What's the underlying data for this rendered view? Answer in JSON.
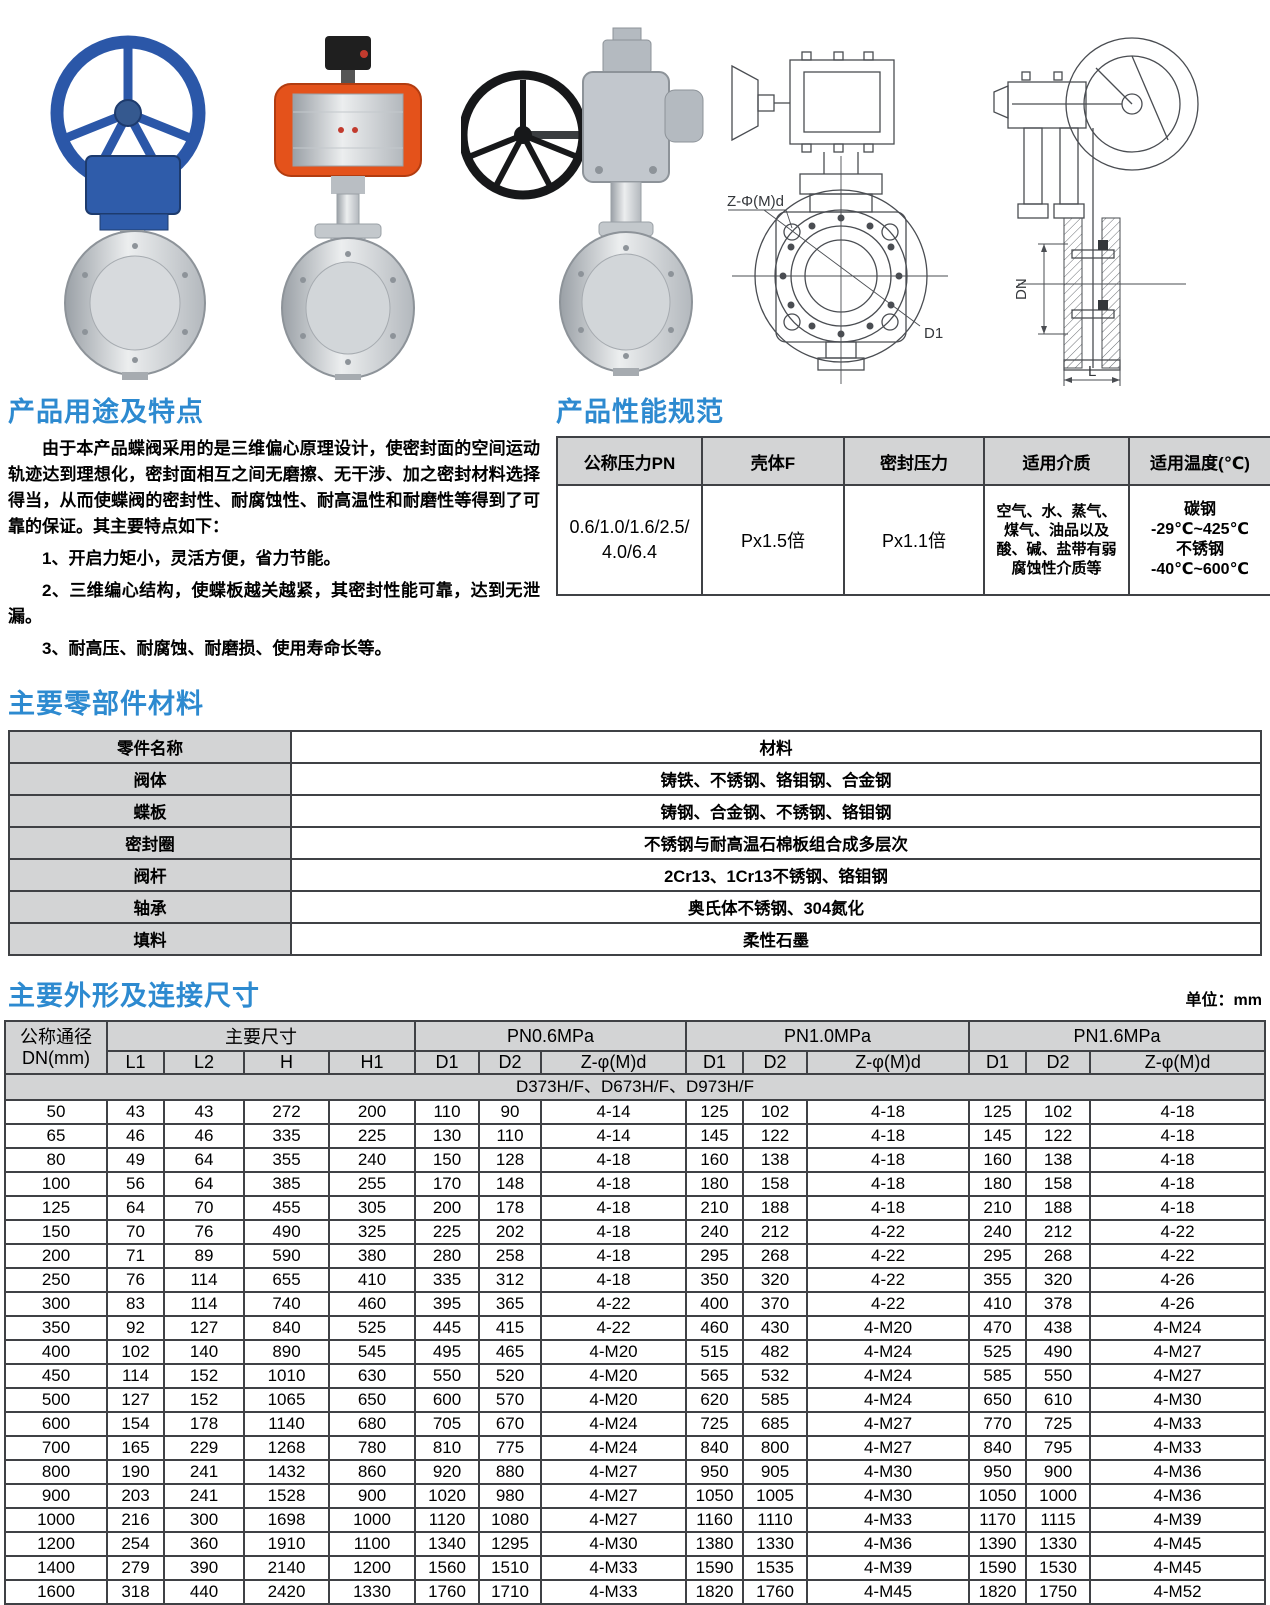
{
  "colors": {
    "heading_blue": "#2d8ad0",
    "table_header_gray": "#d3d4d5",
    "handwheel_blue": "#2b57a8",
    "actuator_orange": "#e4521b"
  },
  "gallery": {
    "drawing_front": {
      "label_bolt": "Z-Φ(M)d",
      "label_d1": "D1"
    },
    "drawing_side": {
      "label_dn": "DN",
      "label_l": "L"
    }
  },
  "features": {
    "title": "产品用途及特点",
    "intro": "由于本产品蝶阀采用的是三维偏心原理设计，使密封面的空间运动轨迹达到理想化，密封面相互之间无磨擦、无干涉、加之密封材料选择得当，从而使蝶阀的密封性、耐腐蚀性、耐高温性和耐磨性等得到了可靠的保证。其主要特点如下：",
    "items": [
      "1、开启力矩小，灵活方便，省力节能。",
      "2、三维编心结构，使蝶板越关越紧，其密封性能可靠，达到无泄漏。",
      "3、耐高压、耐腐蚀、耐磨损、使用寿命长等。"
    ]
  },
  "specs": {
    "title": "产品性能规范",
    "headers": [
      "公称压力PN",
      "壳体F",
      "密封压力",
      "适用介质",
      "适用温度(℃)"
    ],
    "row": {
      "pn": "0.6/1.0/1.6/2.5/4.0/6.4",
      "shell": "Px1.5倍",
      "seal": "Px1.1倍",
      "medium": "空气、水、蒸气、煤气、油品以及酸、碱、盐带有弱腐蚀性介质等",
      "temp_lines": [
        "碳钢",
        "-29℃~425℃",
        "不锈钢",
        "-40℃~600℃"
      ]
    }
  },
  "materials": {
    "title": "主要零部件材料",
    "headers": [
      "零件名称",
      "材料"
    ],
    "rows": [
      [
        "阀体",
        "铸铁、不锈钢、铬钼钢、合金钢"
      ],
      [
        "蝶板",
        "铸钢、合金钢、不锈钢、铬钼钢"
      ],
      [
        "密封圈",
        "不锈钢与耐高温石棉板组合成多层次"
      ],
      [
        "阀杆",
        "2Cr13、1Cr13不锈钢、铬钼钢"
      ],
      [
        "轴承",
        "奥氏体不锈钢、304氮化"
      ],
      [
        "填料",
        "柔性石墨"
      ]
    ]
  },
  "dimensions": {
    "title": "主要外形及连接尺寸",
    "unit_note": "单位：mm",
    "dn_header": "公称通径\nDN(mm)",
    "groups": [
      "主要尺寸",
      "PN0.6MPa",
      "PN1.0MPa",
      "PN1.6MPa"
    ],
    "sub_headers": [
      "L1",
      "L2",
      "H",
      "H1",
      "D1",
      "D2",
      "Z-φ(M)d",
      "D1",
      "D2",
      "Z-φ(M)d",
      "D1",
      "D2",
      "Z-φ(M)d"
    ],
    "models": "D373H/F、D673H/F、D973H/F",
    "rows": [
      [
        "50",
        "43",
        "43",
        "272",
        "200",
        "110",
        "90",
        "4-14",
        "125",
        "102",
        "4-18",
        "125",
        "102",
        "4-18"
      ],
      [
        "65",
        "46",
        "46",
        "335",
        "225",
        "130",
        "110",
        "4-14",
        "145",
        "122",
        "4-18",
        "145",
        "122",
        "4-18"
      ],
      [
        "80",
        "49",
        "64",
        "355",
        "240",
        "150",
        "128",
        "4-18",
        "160",
        "138",
        "4-18",
        "160",
        "138",
        "4-18"
      ],
      [
        "100",
        "56",
        "64",
        "385",
        "255",
        "170",
        "148",
        "4-18",
        "180",
        "158",
        "4-18",
        "180",
        "158",
        "4-18"
      ],
      [
        "125",
        "64",
        "70",
        "455",
        "305",
        "200",
        "178",
        "4-18",
        "210",
        "188",
        "4-18",
        "210",
        "188",
        "4-18"
      ],
      [
        "150",
        "70",
        "76",
        "490",
        "325",
        "225",
        "202",
        "4-18",
        "240",
        "212",
        "4-22",
        "240",
        "212",
        "4-22"
      ],
      [
        "200",
        "71",
        "89",
        "590",
        "380",
        "280",
        "258",
        "4-18",
        "295",
        "268",
        "4-22",
        "295",
        "268",
        "4-22"
      ],
      [
        "250",
        "76",
        "114",
        "655",
        "410",
        "335",
        "312",
        "4-18",
        "350",
        "320",
        "4-22",
        "355",
        "320",
        "4-26"
      ],
      [
        "300",
        "83",
        "114",
        "740",
        "460",
        "395",
        "365",
        "4-22",
        "400",
        "370",
        "4-22",
        "410",
        "378",
        "4-26"
      ],
      [
        "350",
        "92",
        "127",
        "840",
        "525",
        "445",
        "415",
        "4-22",
        "460",
        "430",
        "4-M20",
        "470",
        "438",
        "4-M24"
      ],
      [
        "400",
        "102",
        "140",
        "890",
        "545",
        "495",
        "465",
        "4-M20",
        "515",
        "482",
        "4-M24",
        "525",
        "490",
        "4-M27"
      ],
      [
        "450",
        "114",
        "152",
        "1010",
        "630",
        "550",
        "520",
        "4-M20",
        "565",
        "532",
        "4-M24",
        "585",
        "550",
        "4-M27"
      ],
      [
        "500",
        "127",
        "152",
        "1065",
        "650",
        "600",
        "570",
        "4-M20",
        "620",
        "585",
        "4-M24",
        "650",
        "610",
        "4-M30"
      ],
      [
        "600",
        "154",
        "178",
        "1140",
        "680",
        "705",
        "670",
        "4-M24",
        "725",
        "685",
        "4-M27",
        "770",
        "725",
        "4-M33"
      ],
      [
        "700",
        "165",
        "229",
        "1268",
        "780",
        "810",
        "775",
        "4-M24",
        "840",
        "800",
        "4-M27",
        "840",
        "795",
        "4-M33"
      ],
      [
        "800",
        "190",
        "241",
        "1432",
        "860",
        "920",
        "880",
        "4-M27",
        "950",
        "905",
        "4-M30",
        "950",
        "900",
        "4-M36"
      ],
      [
        "900",
        "203",
        "241",
        "1528",
        "900",
        "1020",
        "980",
        "4-M27",
        "1050",
        "1005",
        "4-M30",
        "1050",
        "1000",
        "4-M36"
      ],
      [
        "1000",
        "216",
        "300",
        "1698",
        "1000",
        "1120",
        "1080",
        "4-M27",
        "1160",
        "1110",
        "4-M33",
        "1170",
        "1115",
        "4-M39"
      ],
      [
        "1200",
        "254",
        "360",
        "1910",
        "1100",
        "1340",
        "1295",
        "4-M30",
        "1380",
        "1330",
        "4-M36",
        "1390",
        "1330",
        "4-M45"
      ],
      [
        "1400",
        "279",
        "390",
        "2140",
        "1200",
        "1560",
        "1510",
        "4-M33",
        "1590",
        "1535",
        "4-M39",
        "1590",
        "1530",
        "4-M45"
      ],
      [
        "1600",
        "318",
        "440",
        "2420",
        "1330",
        "1760",
        "1710",
        "4-M33",
        "1820",
        "1760",
        "4-M45",
        "1820",
        "1750",
        "4-M52"
      ]
    ]
  }
}
